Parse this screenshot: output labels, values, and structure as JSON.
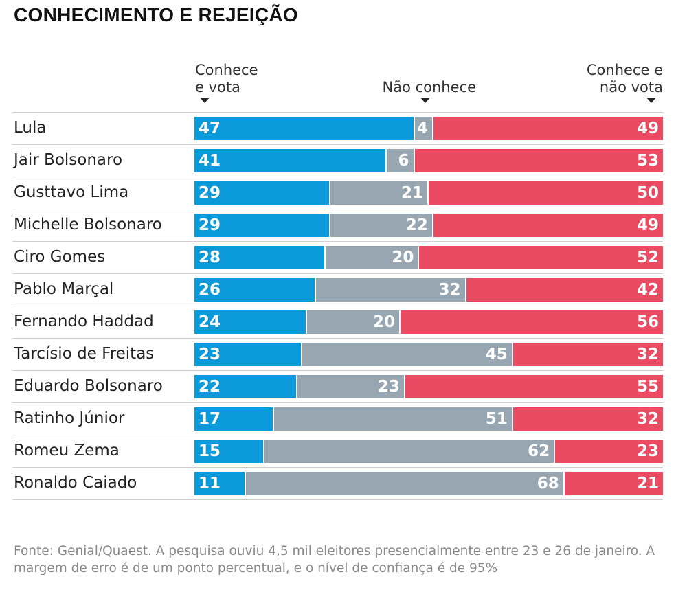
{
  "chart_data": {
    "type": "bar",
    "stacked": true,
    "orientation": "horizontal",
    "title": "CONHECIMENTO E REJEIÇÃO",
    "categories": [
      "Lula",
      "Jair Bolsonaro",
      "Gusttavo Lima",
      "Michelle Bolsonaro",
      "Ciro Gomes",
      "Pablo Marçal",
      "Fernando Haddad",
      "Tarcísio de Freitas",
      "Eduardo Bolsonaro",
      "Ratinho Júnior",
      "Romeu Zema",
      "Ronaldo Caiado"
    ],
    "series": [
      {
        "name": "Conhece e vota",
        "color": "#0a9ad9",
        "values": [
          47,
          41,
          29,
          29,
          28,
          26,
          24,
          23,
          22,
          17,
          15,
          11
        ]
      },
      {
        "name": "Não conhece",
        "color": "#97a6b0",
        "values": [
          4,
          6,
          21,
          22,
          20,
          32,
          20,
          45,
          23,
          51,
          62,
          68
        ]
      },
      {
        "name": "Conhece e não vota",
        "color": "#ea4a62",
        "values": [
          49,
          53,
          50,
          49,
          52,
          42,
          56,
          32,
          55,
          32,
          23,
          21
        ]
      }
    ],
    "xlim": [
      0,
      100
    ],
    "source": "Fonte: Genial/Quaest. A pesquisa ouviu 4,5 mil eleitores presencialmente entre 23 e 26 de janeiro. A margem de erro é de um ponto percentual, e o nível de confiança é de 95%"
  }
}
